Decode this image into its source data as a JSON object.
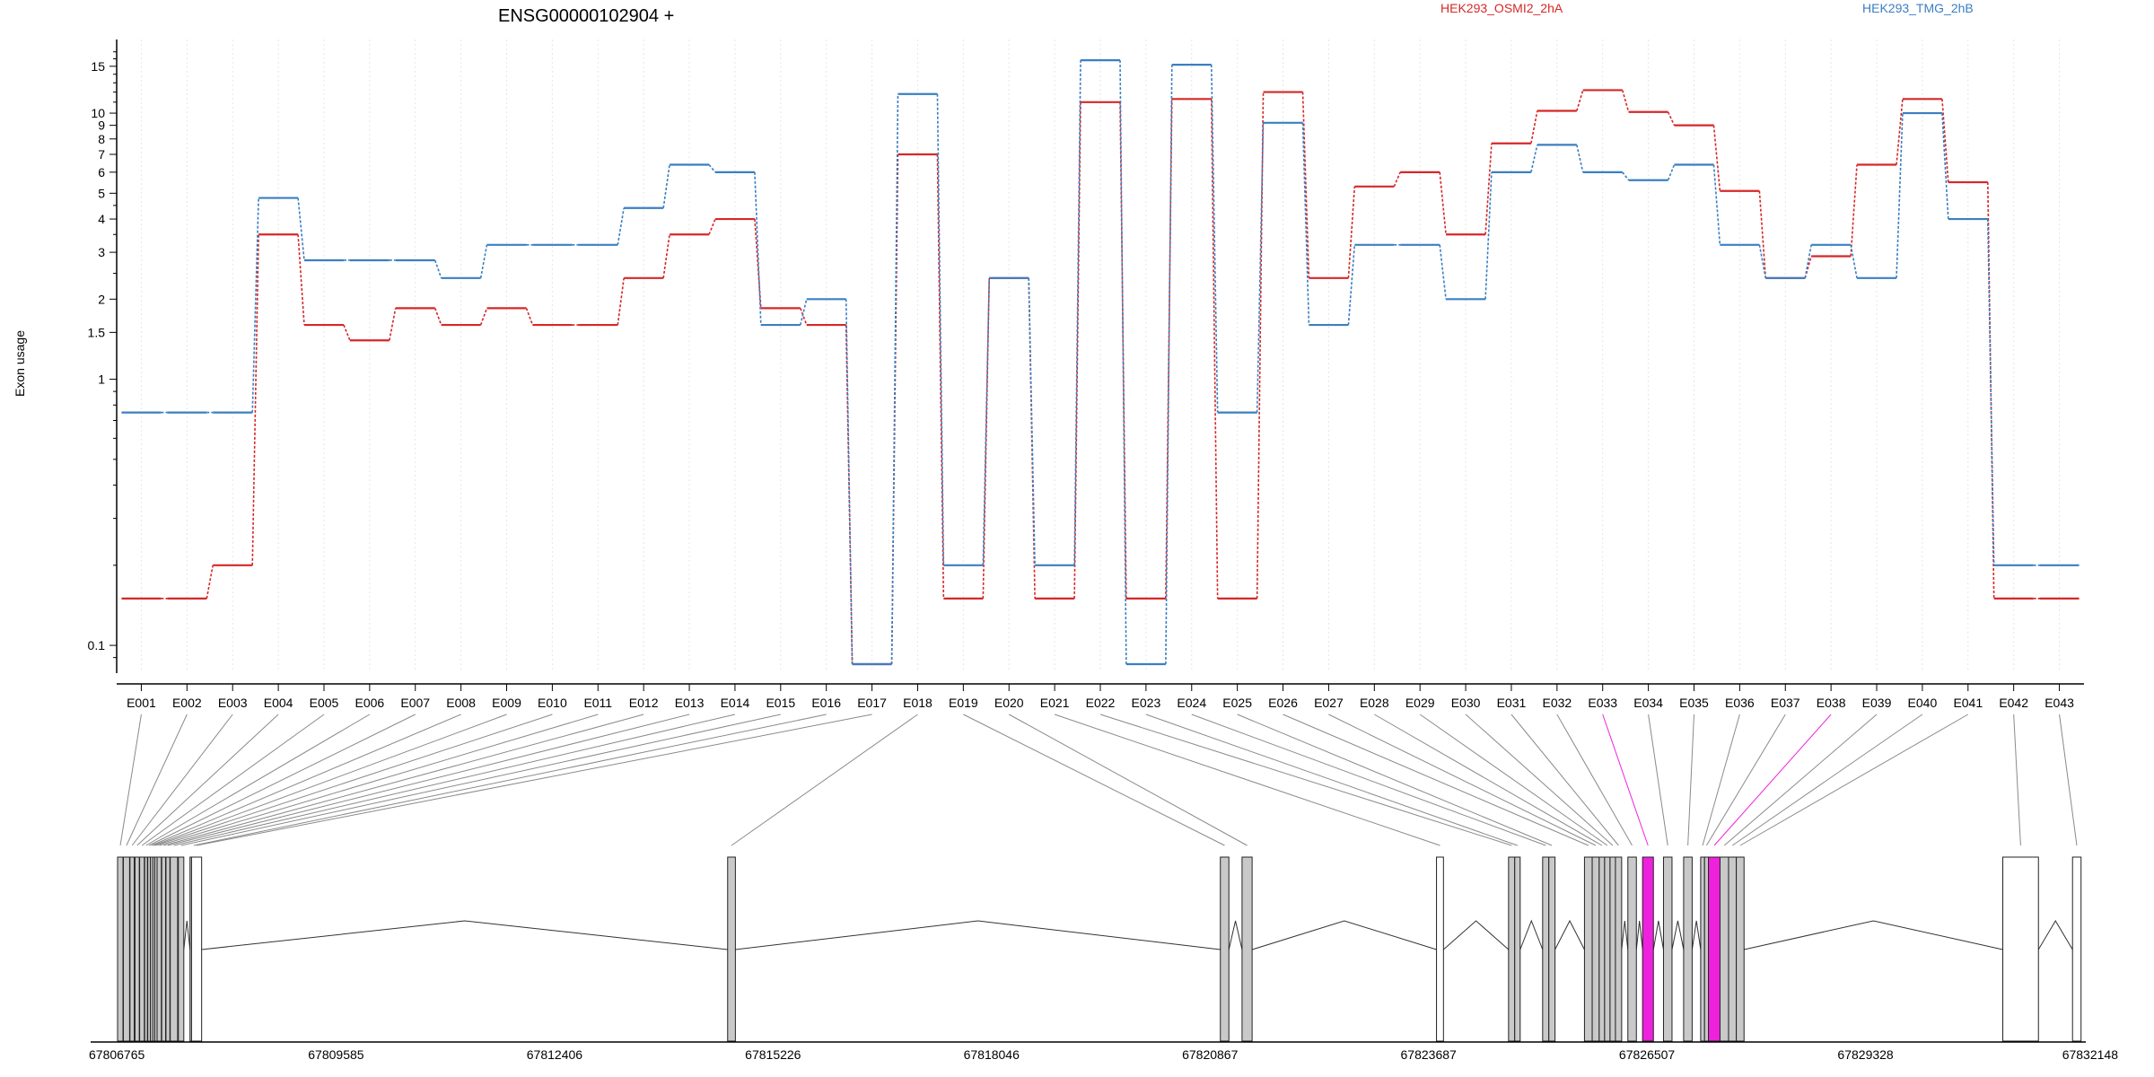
{
  "chart_data": {
    "type": "line",
    "title": "ENSG00000102904 +",
    "ylabel": "Exon usage",
    "xlabel": "",
    "y_scale": "log",
    "ylim": [
      0.085,
      17.5
    ],
    "y_ticks": [
      {
        "value": 0.1,
        "label": "0.1"
      },
      {
        "value": 1,
        "label": "1"
      },
      {
        "value": 1.5,
        "label": "1.5"
      },
      {
        "value": 2,
        "label": "2"
      },
      {
        "value": 3,
        "label": "3"
      },
      {
        "value": 4,
        "label": "4"
      },
      {
        "value": 5,
        "label": "5"
      },
      {
        "value": 6,
        "label": "6"
      },
      {
        "value": 7,
        "label": "7"
      },
      {
        "value": 8,
        "label": "8"
      },
      {
        "value": 9,
        "label": "9"
      },
      {
        "value": 10,
        "label": "10"
      },
      {
        "value": 15,
        "label": "15"
      }
    ],
    "grid": "vertical-dotted",
    "legend_position": "top-right",
    "categories": [
      "E001",
      "E002",
      "E003",
      "E004",
      "E005",
      "E006",
      "E007",
      "E008",
      "E009",
      "E010",
      "E011",
      "E012",
      "E013",
      "E014",
      "E015",
      "E016",
      "E017",
      "E018",
      "E019",
      "E020",
      "E021",
      "E022",
      "E023",
      "E024",
      "E025",
      "E026",
      "E027",
      "E028",
      "E029",
      "E030",
      "E031",
      "E032",
      "E033",
      "E034",
      "E035",
      "E036",
      "E037",
      "E038",
      "E039",
      "E040",
      "E041",
      "E042",
      "E043"
    ],
    "series": [
      {
        "name": "HEK293_OSMI2_2hA",
        "color": "#d62728",
        "values": [
          0.15,
          0.15,
          0.2,
          3.5,
          1.6,
          1.4,
          1.85,
          1.6,
          1.85,
          1.6,
          1.6,
          2.4,
          3.5,
          4.0,
          1.85,
          1.6,
          0.085,
          7.0,
          0.15,
          2.4,
          0.15,
          11.0,
          0.15,
          11.3,
          0.15,
          12.0,
          2.4,
          5.3,
          6.0,
          3.5,
          7.7,
          10.2,
          12.2,
          10.1,
          9.0,
          5.1,
          2.4,
          2.9,
          6.4,
          11.3,
          5.5,
          0.15,
          0.15
        ]
      },
      {
        "name": "HEK293_TMG_2hB",
        "color": "#3a7fc1",
        "values": [
          0.75,
          0.75,
          0.75,
          4.8,
          2.8,
          2.8,
          2.8,
          2.4,
          3.2,
          3.2,
          3.2,
          4.4,
          6.4,
          6.0,
          1.6,
          2.0,
          0.085,
          11.8,
          0.2,
          2.4,
          0.2,
          15.8,
          0.085,
          15.2,
          0.75,
          9.2,
          1.6,
          3.2,
          3.2,
          2.0,
          6.0,
          7.6,
          6.0,
          5.6,
          6.4,
          3.2,
          2.4,
          3.2,
          2.4,
          10.0,
          4.0,
          0.2,
          0.2
        ]
      }
    ],
    "gene_model": {
      "coordinate_labels": [
        "67806765",
        "67809585",
        "67812406",
        "67815226",
        "67818046",
        "67820867",
        "67823687",
        "67826507",
        "67829328",
        "67832148"
      ],
      "highlight_color": "#ee22dd",
      "exons": [
        {
          "id": "E001",
          "start": 67806765,
          "end": 67806835,
          "expressed": true
        },
        {
          "id": "E002",
          "start": 67806840,
          "end": 67806920,
          "expressed": true
        },
        {
          "id": "E003",
          "start": 67806925,
          "end": 67806980,
          "expressed": true
        },
        {
          "id": "E004",
          "start": 67806990,
          "end": 67807045,
          "expressed": true
        },
        {
          "id": "E005",
          "start": 67807050,
          "end": 67807110,
          "expressed": true
        },
        {
          "id": "E006",
          "start": 67807115,
          "end": 67807150,
          "expressed": true
        },
        {
          "id": "E007",
          "start": 67807155,
          "end": 67807185,
          "expressed": true
        },
        {
          "id": "E008",
          "start": 67807190,
          "end": 67807215,
          "expressed": true
        },
        {
          "id": "E009",
          "start": 67807220,
          "end": 67807240,
          "expressed": true
        },
        {
          "id": "E010",
          "start": 67807245,
          "end": 67807270,
          "expressed": true
        },
        {
          "id": "E011",
          "start": 67807275,
          "end": 67807330,
          "expressed": true
        },
        {
          "id": "E012",
          "start": 67807335,
          "end": 67807385,
          "expressed": true
        },
        {
          "id": "E013",
          "start": 67807390,
          "end": 67807440,
          "expressed": true
        },
        {
          "id": "E014",
          "start": 67807445,
          "end": 67807540,
          "expressed": true
        },
        {
          "id": "E015",
          "start": 67807550,
          "end": 67807620,
          "expressed": true
        },
        {
          "id": "E016",
          "start": 67807700,
          "end": 67807800,
          "expressed": true
        },
        {
          "id": "E017",
          "start": 67807720,
          "end": 67807850,
          "expressed": false
        },
        {
          "id": "E018",
          "start": 67814640,
          "end": 67814740,
          "expressed": true
        },
        {
          "id": "E019",
          "start": 67821000,
          "end": 67821110,
          "expressed": true
        },
        {
          "id": "E020",
          "start": 67821280,
          "end": 67821410,
          "expressed": true
        },
        {
          "id": "E021",
          "start": 67823790,
          "end": 67823880,
          "expressed": false
        },
        {
          "id": "E022",
          "start": 67824720,
          "end": 67824800,
          "expressed": true
        },
        {
          "id": "E023",
          "start": 67824800,
          "end": 67824870,
          "expressed": true
        },
        {
          "id": "E024",
          "start": 67825160,
          "end": 67825240,
          "expressed": true
        },
        {
          "id": "E025",
          "start": 67825240,
          "end": 67825320,
          "expressed": true
        },
        {
          "id": "E026",
          "start": 67825700,
          "end": 67825800,
          "expressed": true
        },
        {
          "id": "E027",
          "start": 67825800,
          "end": 67825890,
          "expressed": true
        },
        {
          "id": "E028",
          "start": 67825890,
          "end": 67825960,
          "expressed": true
        },
        {
          "id": "E029",
          "start": 67825960,
          "end": 67826030,
          "expressed": true
        },
        {
          "id": "E030",
          "start": 67826030,
          "end": 67826100,
          "expressed": true
        },
        {
          "id": "E031",
          "start": 67826100,
          "end": 67826180,
          "expressed": true
        },
        {
          "id": "E032",
          "start": 67826260,
          "end": 67826370,
          "expressed": true
        },
        {
          "id": "E033",
          "start": 67826450,
          "end": 67826590,
          "expressed": true,
          "highlight": true
        },
        {
          "id": "E034",
          "start": 67826720,
          "end": 67826830,
          "expressed": true
        },
        {
          "id": "E035",
          "start": 67826980,
          "end": 67827090,
          "expressed": true
        },
        {
          "id": "E036",
          "start": 67827200,
          "end": 67827250,
          "expressed": true
        },
        {
          "id": "E037",
          "start": 67827250,
          "end": 67827300,
          "expressed": true
        },
        {
          "id": "E038",
          "start": 67827300,
          "end": 67827450,
          "expressed": true,
          "highlight": true
        },
        {
          "id": "E039",
          "start": 67827450,
          "end": 67827560,
          "expressed": true
        },
        {
          "id": "E040",
          "start": 67827560,
          "end": 67827660,
          "expressed": true
        },
        {
          "id": "E041",
          "start": 67827660,
          "end": 67827760,
          "expressed": true
        },
        {
          "id": "E042",
          "start": 67831100,
          "end": 67831560,
          "expressed": false
        },
        {
          "id": "E043",
          "start": 67832000,
          "end": 67832110,
          "expressed": false
        }
      ]
    }
  }
}
